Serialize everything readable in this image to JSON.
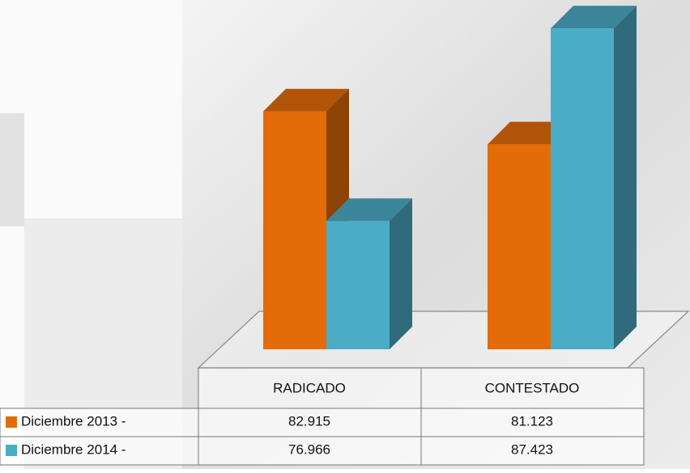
{
  "chart_data": {
    "type": "bar3d",
    "categories": [
      "RADICADO",
      "CONTESTADO"
    ],
    "series": [
      {
        "name": "Diciembre 2013 -",
        "color": "#e36c09",
        "values": [
          82915,
          81123
        ],
        "value_labels": [
          "82.915",
          "81.123"
        ]
      },
      {
        "name": "Diciembre 2014 -",
        "color": "#4bacc6",
        "values": [
          76966,
          87423
        ],
        "value_labels": [
          "76.966",
          "87.423"
        ]
      }
    ],
    "ylim": [
      70000,
      88000
    ]
  }
}
